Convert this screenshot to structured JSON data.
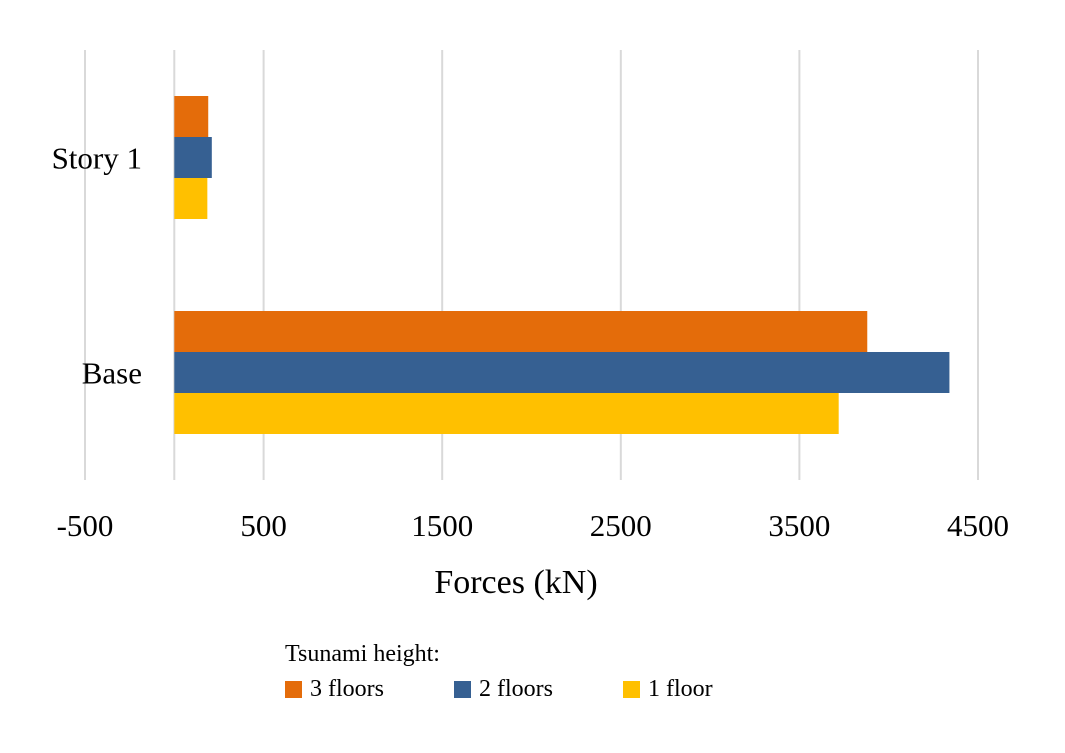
{
  "chart_data": {
    "type": "bar",
    "orientation": "horizontal",
    "categories": [
      "Story 1",
      "Base"
    ],
    "series": [
      {
        "name": "3 floors",
        "values": [
          190,
          3880
        ],
        "color": "#E46C0A"
      },
      {
        "name": "2 floors",
        "values": [
          210,
          4340
        ],
        "color": "#366092"
      },
      {
        "name": "1 floor",
        "values": [
          185,
          3720
        ],
        "color": "#FFC000"
      }
    ],
    "xlabel": "Forces (kN)",
    "xlim": [
      -500,
      4500
    ],
    "xticks": [
      "-500",
      "500",
      "1500",
      "2500",
      "3500",
      "4500"
    ],
    "xtick_values": [
      -500,
      500,
      1500,
      2500,
      3500,
      4500
    ],
    "grid": true,
    "legend_title": "Tsunami height:",
    "legend_position": "bottom"
  }
}
